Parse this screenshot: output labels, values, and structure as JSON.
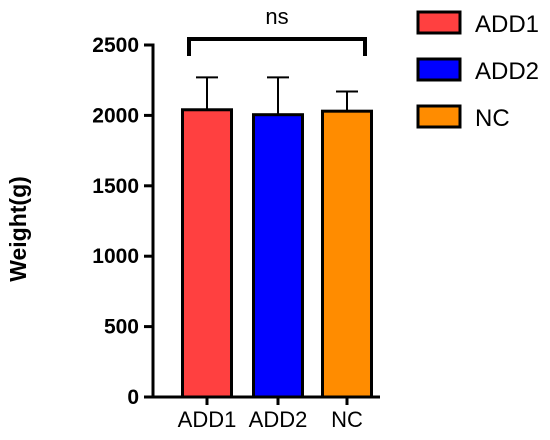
{
  "chart_data": {
    "type": "bar",
    "categories": [
      "ADD1",
      "ADD2",
      "NC"
    ],
    "values": [
      2040,
      2005,
      2030
    ],
    "errors": [
      230,
      265,
      140
    ],
    "colors": [
      "#ff4040",
      "#0000ff",
      "#ff8c00"
    ],
    "ylabel": "Weight(g)",
    "ylim": [
      0,
      2500
    ],
    "yticks": [
      0,
      500,
      1000,
      1500,
      2000,
      2500
    ],
    "yticklabels": [
      "0",
      "500",
      "1000",
      "1500",
      "2000",
      "2500"
    ],
    "legend": {
      "placement": "top-right",
      "entries": [
        {
          "label": "ADD1",
          "color": "#ff4040"
        },
        {
          "label": "ADD2",
          "color": "#0000ff"
        },
        {
          "label": "NC",
          "color": "#ff8c00"
        }
      ]
    },
    "annotation": {
      "text": "ns",
      "from": "ADD1",
      "to": "NC"
    }
  }
}
